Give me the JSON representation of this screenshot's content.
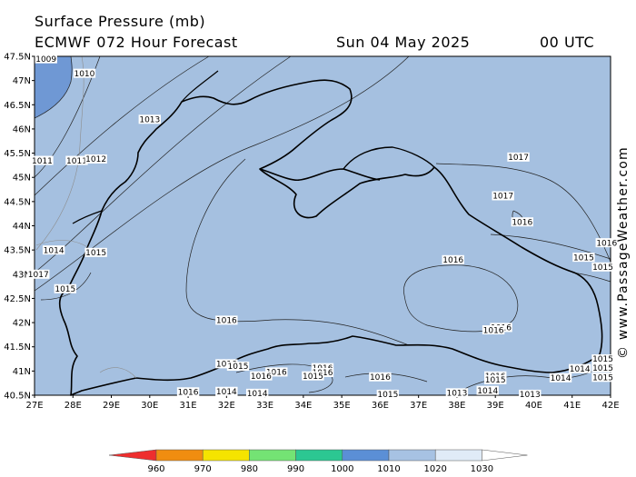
{
  "title": {
    "line1": "Surface Pressure (mb)",
    "line2": "ECMWF 072 Hour Forecast",
    "date": "Sun 04 May 2025",
    "time": "00 UTC"
  },
  "axes": {
    "lat_labels": [
      "47.5N",
      "47N",
      "46.5N",
      "46N",
      "45.5N",
      "45N",
      "44.5N",
      "44N",
      "43.5N",
      "43N",
      "42.5N",
      "42N",
      "41.5N",
      "41N",
      "40.5N"
    ],
    "lon_labels": [
      "27E",
      "28E",
      "29E",
      "30E",
      "31E",
      "32E",
      "33E",
      "34E",
      "35E",
      "36E",
      "37E",
      "38E",
      "39E",
      "40E",
      "41E",
      "42E"
    ]
  },
  "isobar_labels": [
    {
      "text": "1009",
      "lon": 27.3,
      "lat": 47.45
    },
    {
      "text": "1010",
      "lon": 28.3,
      "lat": 47.15
    },
    {
      "text": "1011",
      "lon": 27.2,
      "lat": 45.35
    },
    {
      "text": "1011",
      "lon": 28.1,
      "lat": 45.35
    },
    {
      "text": "1012",
      "lon": 28.6,
      "lat": 45.38
    },
    {
      "text": "1013",
      "lon": 30.0,
      "lat": 46.2
    },
    {
      "text": "1014",
      "lon": 27.5,
      "lat": 43.5
    },
    {
      "text": "1015",
      "lon": 28.6,
      "lat": 43.45
    },
    {
      "text": "1015",
      "lon": 27.8,
      "lat": 42.7
    },
    {
      "text": "1017",
      "lon": 27.1,
      "lat": 43.0
    },
    {
      "text": "1016",
      "lon": 32.0,
      "lat": 42.05
    },
    {
      "text": "1017",
      "lon": 39.6,
      "lat": 45.42
    },
    {
      "text": "1017",
      "lon": 39.2,
      "lat": 44.62
    },
    {
      "text": "1016",
      "lon": 39.7,
      "lat": 44.08
    },
    {
      "text": "1016",
      "lon": 41.9,
      "lat": 43.65
    },
    {
      "text": "1015",
      "lon": 41.3,
      "lat": 43.35
    },
    {
      "text": "1015",
      "lon": 41.8,
      "lat": 43.15
    },
    {
      "text": "1016",
      "lon": 37.9,
      "lat": 43.3
    },
    {
      "text": "1016",
      "lon": 39.15,
      "lat": 41.9
    },
    {
      "text": "1016",
      "lon": 38.95,
      "lat": 41.85
    },
    {
      "text": "1016",
      "lon": 32.0,
      "lat": 41.15
    },
    {
      "text": "1015",
      "lon": 32.3,
      "lat": 41.1
    },
    {
      "text": "1016",
      "lon": 33.3,
      "lat": 40.98
    },
    {
      "text": "1016",
      "lon": 34.5,
      "lat": 41.07
    },
    {
      "text": "1016",
      "lon": 34.5,
      "lat": 40.97
    },
    {
      "text": "1016",
      "lon": 32.9,
      "lat": 40.9
    },
    {
      "text": "1015",
      "lon": 34.25,
      "lat": 40.9
    },
    {
      "text": "1016",
      "lon": 36.0,
      "lat": 40.88
    },
    {
      "text": "1016",
      "lon": 31.0,
      "lat": 40.57
    },
    {
      "text": "1014",
      "lon": 32.0,
      "lat": 40.58
    },
    {
      "text": "1014",
      "lon": 32.8,
      "lat": 40.54
    },
    {
      "text": "1016",
      "lon": 39.0,
      "lat": 40.9
    },
    {
      "text": "1015",
      "lon": 39.0,
      "lat": 40.82
    },
    {
      "text": "1014",
      "lon": 38.8,
      "lat": 40.6
    },
    {
      "text": "1013",
      "lon": 38.0,
      "lat": 40.55
    },
    {
      "text": "1013",
      "lon": 39.9,
      "lat": 40.52
    },
    {
      "text": "1015",
      "lon": 36.2,
      "lat": 40.52
    },
    {
      "text": "1014",
      "lon": 40.7,
      "lat": 40.86
    },
    {
      "text": "1014",
      "lon": 41.2,
      "lat": 41.05
    },
    {
      "text": "1015",
      "lon": 41.8,
      "lat": 41.25
    },
    {
      "text": "1015",
      "lon": 41.8,
      "lat": 41.07
    },
    {
      "text": "1015",
      "lon": 41.8,
      "lat": 40.87
    }
  ],
  "legend": {
    "bins": [
      {
        "color": "#f0e030",
        "low": 975
      },
      {
        "color": "#f08d10",
        "low": 965
      },
      {
        "color": "#ee2e2e",
        "low": 955
      },
      {
        "color": "#f5e400",
        "low": 970
      },
      {
        "color": "#74e374",
        "low": 980
      },
      {
        "color": "#2cc792",
        "low": 990
      },
      {
        "color": "#5b8fd6",
        "low": 1000
      },
      {
        "color": "#a7c2e3",
        "low": 1010
      },
      {
        "color": "#e0ebf7",
        "low": 1020
      }
    ],
    "ticks": [
      "960",
      "970",
      "980",
      "990",
      "1000",
      "1010",
      "1020",
      "1030"
    ]
  },
  "colors": {
    "sea_fill": "#a5c0e0",
    "low_fill": "#6f98d4",
    "coast": "#000000",
    "isobar": "#222222"
  },
  "credit": "© www.PassageWeather.com"
}
